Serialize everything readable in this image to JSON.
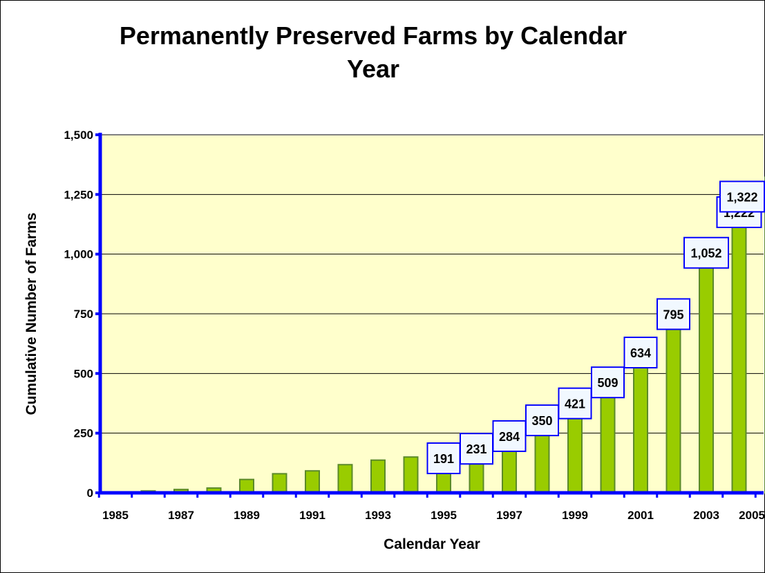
{
  "chart_data": {
    "type": "bar",
    "title": "Permanently  Preserved  Farms by Calendar\nYear",
    "xlabel": "Calendar  Year",
    "ylabel": "Cumulative  Number  of  Farms",
    "categories": [
      "1985",
      "1986",
      "1987",
      "1988",
      "1989",
      "1990",
      "1991",
      "1992",
      "1993",
      "1994",
      "1995",
      "1996",
      "1997",
      "1998",
      "1999",
      "2000",
      "2001",
      "2002",
      "2003",
      "2004",
      "2005"
    ],
    "x_tick_labels": [
      "1985",
      "1987",
      "1989",
      "1991",
      "1993",
      "1995",
      "1997",
      "1999",
      "2001",
      "2003",
      "2005"
    ],
    "values": [
      4,
      8,
      14,
      20,
      56,
      80,
      92,
      118,
      137,
      150,
      191,
      231,
      284,
      350,
      421,
      509,
      634,
      795,
      1052,
      1222,
      1322
    ],
    "data_labels": [
      null,
      null,
      null,
      null,
      null,
      null,
      null,
      null,
      null,
      null,
      "191",
      "231",
      "284",
      "350",
      "421",
      "509",
      "634",
      "795",
      "1,052",
      "1,222",
      "1,322"
    ],
    "y_tick_labels": [
      "0",
      "250",
      "500",
      "750",
      "1,000",
      "1,250",
      "1,500"
    ],
    "y_ticks": [
      0,
      250,
      500,
      750,
      1000,
      1250,
      1500
    ],
    "ylim": [
      0,
      1500
    ],
    "grid": true,
    "legend": "none",
    "colors": {
      "bar_fill": "#99cc00",
      "bar_stroke": "#5b8a2a",
      "plot_bg": "#ffffcc",
      "axis": "#0000ff",
      "label_box_stroke": "#0000ff",
      "label_box_fill": "#ffffff",
      "gridline": "#000000"
    }
  }
}
